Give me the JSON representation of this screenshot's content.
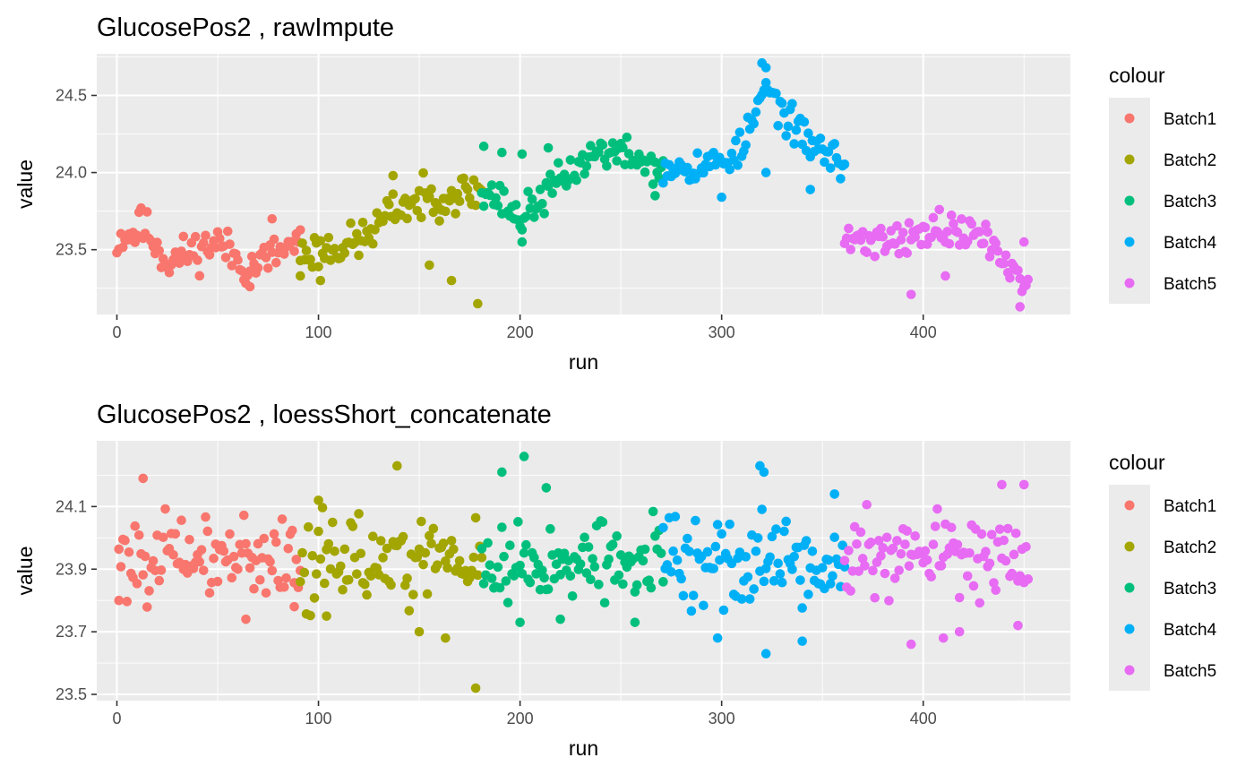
{
  "chart_data": [
    {
      "type": "scatter",
      "title": "GlucosePos2 ,  rawImpute",
      "xlabel": "run",
      "ylabel": "value",
      "xlim": [
        -10,
        473
      ],
      "ylim": [
        23.08,
        24.77
      ],
      "x_ticks": [
        0,
        100,
        200,
        300,
        400
      ],
      "x_tick_labels": [
        "0",
        "100",
        "200",
        "300",
        "400"
      ],
      "y_ticks": [
        23.5,
        24.0,
        24.5
      ],
      "y_tick_labels": [
        "23.5",
        "24.0",
        "24.5"
      ],
      "grid": true,
      "legend": {
        "title": "colour",
        "position": "right",
        "entries": [
          "Batch1",
          "Batch2",
          "Batch3",
          "Batch4",
          "Batch5"
        ]
      },
      "colors": [
        "#F8766D",
        "#A3A500",
        "#00BF7D",
        "#00B0F6",
        "#E76BF3"
      ],
      "series": [
        {
          "name": "Batch1",
          "color": "#F8766D",
          "start": 1,
          "end": 91,
          "anchors": [
            [
              0,
              23.58
            ],
            [
              15,
              23.63
            ],
            [
              25,
              23.42
            ],
            [
              50,
              23.55
            ],
            [
              65,
              23.38
            ],
            [
              91,
              23.55
            ]
          ],
          "noise": 0.09,
          "seed": 11,
          "extras": [
            [
              0,
              23.48
            ],
            [
              12,
              23.77
            ],
            [
              66,
              23.26
            ],
            [
              77,
              23.7
            ]
          ]
        },
        {
          "name": "Batch2",
          "color": "#A3A500",
          "start": 91,
          "end": 181,
          "anchors": [
            [
              91,
              23.47
            ],
            [
              120,
              23.55
            ],
            [
              140,
              23.78
            ],
            [
              160,
              23.85
            ],
            [
              181,
              23.88
            ]
          ],
          "noise": 0.09,
          "seed": 23,
          "extras": [
            [
              91,
              23.33
            ],
            [
              101,
              23.3
            ],
            [
              137,
              23.98
            ],
            [
              155,
              23.4
            ],
            [
              166,
              23.3
            ],
            [
              179,
              23.15
            ]
          ]
        },
        {
          "name": "Batch3",
          "color": "#00BF7D",
          "start": 181,
          "end": 271,
          "anchors": [
            [
              181,
              23.92
            ],
            [
              200,
              23.7
            ],
            [
              220,
              23.95
            ],
            [
              240,
              24.15
            ],
            [
              255,
              24.1
            ],
            [
              271,
              24.02
            ]
          ],
          "noise": 0.08,
          "seed": 37,
          "extras": [
            [
              182,
              24.17
            ],
            [
              191,
              24.13
            ],
            [
              201,
              24.12
            ],
            [
              214,
              24.16
            ],
            [
              201,
              23.55
            ],
            [
              267,
              23.85
            ]
          ]
        },
        {
          "name": "Batch4",
          "color": "#00B0F6",
          "start": 271,
          "end": 361,
          "anchors": [
            [
              271,
              24.05
            ],
            [
              295,
              24.05
            ],
            [
              310,
              24.15
            ],
            [
              322,
              24.55
            ],
            [
              338,
              24.25
            ],
            [
              361,
              24.05
            ]
          ],
          "noise": 0.08,
          "seed": 53,
          "extras": [
            [
              320,
              24.71
            ],
            [
              322,
              24.68
            ],
            [
              300,
              23.84
            ],
            [
              322,
              24.0
            ],
            [
              344,
              23.89
            ]
          ]
        },
        {
          "name": "Batch5",
          "color": "#E76BF3",
          "start": 361,
          "end": 452,
          "anchors": [
            [
              361,
              23.55
            ],
            [
              385,
              23.58
            ],
            [
              410,
              23.6
            ],
            [
              430,
              23.6
            ],
            [
              441,
              23.4
            ],
            [
              452,
              23.3
            ]
          ],
          "noise": 0.08,
          "seed": 71,
          "extras": [
            [
              394,
              23.21
            ],
            [
              448,
              23.13
            ],
            [
              411,
              23.33
            ],
            [
              408,
              23.76
            ],
            [
              450,
              23.55
            ]
          ]
        }
      ]
    },
    {
      "type": "scatter",
      "title": "GlucosePos2 ,  loessShort_concatenate",
      "xlabel": "run",
      "ylabel": "value",
      "xlim": [
        -10,
        473
      ],
      "ylim": [
        23.48,
        24.31
      ],
      "x_ticks": [
        0,
        100,
        200,
        300,
        400
      ],
      "x_tick_labels": [
        "0",
        "100",
        "200",
        "300",
        "400"
      ],
      "y_ticks": [
        23.5,
        23.7,
        23.9,
        24.1
      ],
      "y_tick_labels": [
        "23.5",
        "23.7",
        "23.9",
        "24.1"
      ],
      "grid": true,
      "legend": {
        "title": "colour",
        "position": "right",
        "entries": [
          "Batch1",
          "Batch2",
          "Batch3",
          "Batch4",
          "Batch5"
        ]
      },
      "colors": [
        "#F8766D",
        "#A3A500",
        "#00BF7D",
        "#00B0F6",
        "#E76BF3"
      ],
      "series": [
        {
          "name": "Batch1",
          "color": "#F8766D",
          "start": 1,
          "end": 91,
          "anchors": [
            [
              0,
              23.94
            ],
            [
              91,
              23.94
            ]
          ],
          "noise": 0.09,
          "seed": 101,
          "extras": [
            [
              13,
              24.19
            ],
            [
              1,
              23.8
            ],
            [
              64,
              23.74
            ],
            [
              88,
              23.78
            ]
          ]
        },
        {
          "name": "Batch2",
          "color": "#A3A500",
          "start": 91,
          "end": 181,
          "anchors": [
            [
              91,
              23.93
            ],
            [
              181,
              23.93
            ]
          ],
          "noise": 0.1,
          "seed": 113,
          "extras": [
            [
              139,
              24.23
            ],
            [
              100,
              24.12
            ],
            [
              150,
              23.7
            ],
            [
              163,
              23.68
            ],
            [
              178,
              23.52
            ],
            [
              104,
              23.75
            ]
          ]
        },
        {
          "name": "Batch3",
          "color": "#00BF7D",
          "start": 181,
          "end": 271,
          "anchors": [
            [
              181,
              23.92
            ],
            [
              271,
              23.92
            ]
          ],
          "noise": 0.09,
          "seed": 127,
          "extras": [
            [
              202,
              24.26
            ],
            [
              191,
              24.21
            ],
            [
              213,
              24.16
            ],
            [
              200,
              23.73
            ],
            [
              257,
              23.73
            ],
            [
              220,
              23.74
            ]
          ]
        },
        {
          "name": "Batch4",
          "color": "#00B0F6",
          "start": 271,
          "end": 361,
          "anchors": [
            [
              271,
              23.92
            ],
            [
              361,
              23.92
            ]
          ],
          "noise": 0.12,
          "seed": 139,
          "extras": [
            [
              319,
              24.23
            ],
            [
              321,
              24.21
            ],
            [
              322,
              23.63
            ],
            [
              298,
              23.68
            ],
            [
              340,
              23.67
            ],
            [
              356,
              24.14
            ]
          ]
        },
        {
          "name": "Batch5",
          "color": "#E76BF3",
          "start": 361,
          "end": 452,
          "anchors": [
            [
              361,
              23.93
            ],
            [
              452,
              23.93
            ]
          ],
          "noise": 0.09,
          "seed": 151,
          "extras": [
            [
              439,
              24.17
            ],
            [
              450,
              24.17
            ],
            [
              394,
              23.66
            ],
            [
              410,
              23.68
            ],
            [
              418,
              23.7
            ],
            [
              447,
              23.72
            ]
          ]
        }
      ]
    }
  ]
}
